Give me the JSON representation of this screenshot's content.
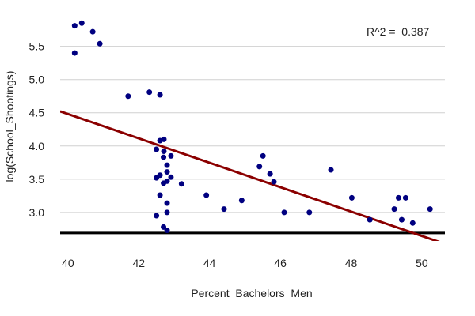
{
  "chart_data": {
    "type": "scatter",
    "title": "",
    "xlabel": "Percent_Bachelors_Men",
    "ylabel": "log(School_Shootings)",
    "annotation": "R^2 =  0.387",
    "xlim": [
      39.78,
      50.65
    ],
    "ylim": [
      2.57,
      5.96
    ],
    "xticks": [
      40,
      42,
      44,
      46,
      48,
      50
    ],
    "xtick_labels": [
      "40",
      "42",
      "44",
      "46",
      "48",
      "50"
    ],
    "yticks": [
      3.0,
      3.5,
      4.0,
      4.5,
      5.0,
      5.5
    ],
    "ytick_labels": [
      "3.0",
      "3.5",
      "4.0",
      "4.5",
      "5.0",
      "5.5"
    ],
    "grid": "horizontal",
    "baseline_y": 2.69,
    "point_color": "#000080",
    "line_color": "#8b0000",
    "regression": {
      "slope": -0.1837,
      "intercept": 11.83
    },
    "points": [
      [
        40.19,
        5.81
      ],
      [
        40.39,
        5.85
      ],
      [
        40.7,
        5.72
      ],
      [
        40.9,
        5.54
      ],
      [
        40.19,
        5.4
      ],
      [
        41.7,
        4.75
      ],
      [
        42.3,
        4.81
      ],
      [
        42.6,
        4.77
      ],
      [
        42.6,
        4.08
      ],
      [
        42.71,
        4.1
      ],
      [
        42.5,
        3.95
      ],
      [
        42.71,
        3.92
      ],
      [
        42.7,
        3.83
      ],
      [
        42.91,
        3.85
      ],
      [
        42.8,
        3.71
      ],
      [
        42.8,
        3.61
      ],
      [
        42.5,
        3.52
      ],
      [
        42.6,
        3.56
      ],
      [
        42.91,
        3.53
      ],
      [
        42.8,
        3.47
      ],
      [
        42.7,
        3.44
      ],
      [
        43.21,
        3.43
      ],
      [
        42.6,
        3.26
      ],
      [
        43.91,
        3.26
      ],
      [
        42.8,
        3.14
      ],
      [
        42.8,
        3.0
      ],
      [
        42.5,
        2.95
      ],
      [
        42.7,
        2.78
      ],
      [
        42.8,
        2.73
      ],
      [
        44.41,
        3.05
      ],
      [
        44.91,
        3.18
      ],
      [
        45.51,
        3.85
      ],
      [
        45.41,
        3.69
      ],
      [
        45.71,
        3.58
      ],
      [
        45.82,
        3.46
      ],
      [
        46.11,
        3.0
      ],
      [
        46.82,
        3.0
      ],
      [
        47.43,
        3.64
      ],
      [
        48.02,
        3.22
      ],
      [
        48.53,
        2.89
      ],
      [
        49.22,
        3.05
      ],
      [
        49.34,
        3.22
      ],
      [
        49.54,
        3.22
      ],
      [
        49.43,
        2.89
      ],
      [
        49.74,
        2.84
      ],
      [
        50.23,
        3.05
      ]
    ]
  }
}
